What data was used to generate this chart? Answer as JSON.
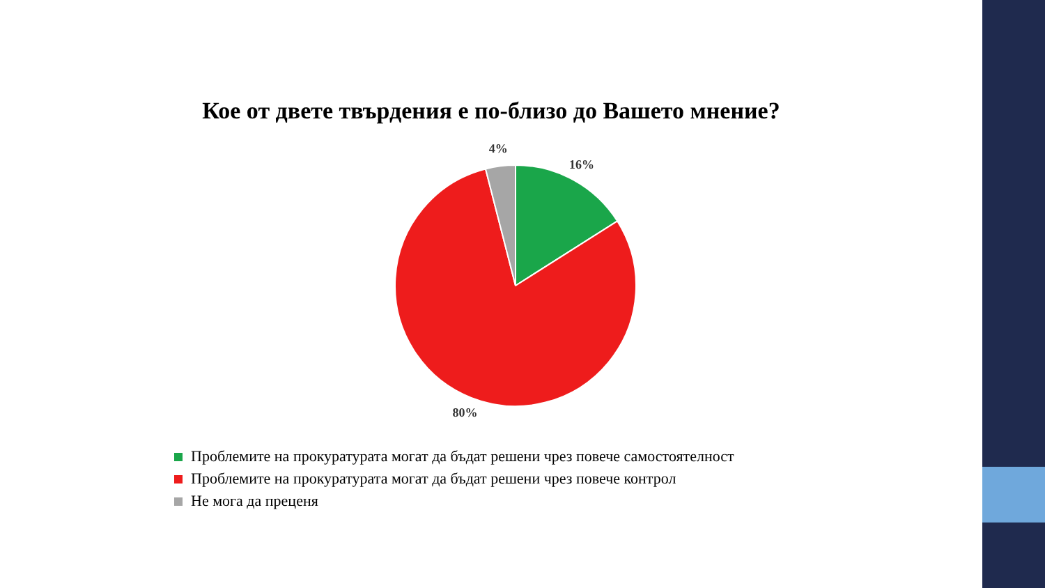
{
  "chart_data": {
    "type": "pie",
    "title": "Кое от двете твърдения е по-близо до Вашето мнение?",
    "categories": [
      "Проблемите на прокуратурата могат да бъдат решени чрез повече самостоятелност",
      "Проблемите на прокуратурата могат да бъдат решени чрез повече контрол",
      "Не мога да преценя"
    ],
    "values": [
      16,
      80,
      4
    ],
    "colors": [
      "#1aa64a",
      "#ee1c1c",
      "#a6a6a6"
    ],
    "value_labels": [
      "16%",
      "80%",
      "4%"
    ],
    "legend": "bottom"
  }
}
